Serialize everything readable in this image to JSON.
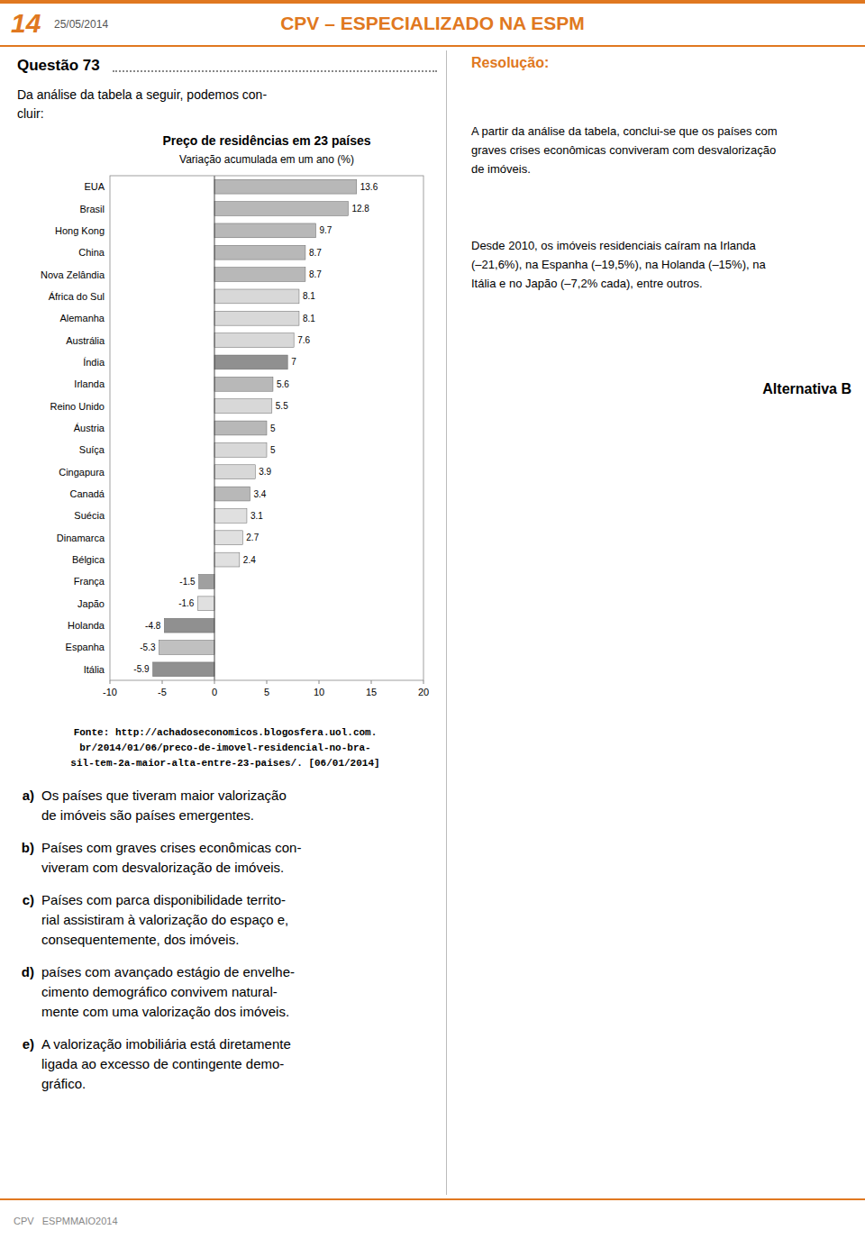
{
  "chart_data": {
    "type": "bar",
    "orientation": "horizontal",
    "title": "Preço de residências em 23 países",
    "subtitle": "Variação acumulada em um ano (%)",
    "categories": [
      "EUA",
      "Brasil",
      "Hong Kong",
      "China",
      "Nova Zelândia",
      "África do Sul",
      "Alemanha",
      "Austrália",
      "Índia",
      "Irlanda",
      "Reino Unido",
      "Áustria",
      "Suíça",
      "Cingapura",
      "Canadá",
      "Suécia",
      "Dinamarca",
      "Bélgica",
      "França",
      "Japão",
      "Holanda",
      "Espanha",
      "Itália"
    ],
    "values": [
      13.6,
      12.8,
      9.7,
      8.7,
      8.7,
      8.1,
      8.1,
      7.6,
      7.0,
      5.6,
      5.5,
      5.0,
      5.0,
      3.9,
      3.4,
      3.1,
      2.7,
      2.4,
      -1.5,
      -1.6,
      -4.8,
      -5.3,
      -5.9
    ],
    "colors": [
      "#b8b8b8",
      "#b8b8b8",
      "#b8b8b8",
      "#b8b8b8",
      "#b8b8b8",
      "#d8d8d8",
      "#d8d8d8",
      "#d8d8d8",
      "#909090",
      "#b8b8b8",
      "#d8d8d8",
      "#b8b8b8",
      "#d8d8d8",
      "#d8d8d8",
      "#b8b8b8",
      "#e0e0e0",
      "#e0e0e0",
      "#e0e0e0",
      "#a0a0a0",
      "#e0e0e0",
      "#909090",
      "#c0c0c0",
      "#909090"
    ],
    "xlim": [
      -10,
      20
    ],
    "xticks": [
      -10,
      -5,
      0,
      5,
      10,
      15,
      20
    ],
    "data_labels": true,
    "grid": false
  },
  "page": {
    "accent_color": "#E07820",
    "header_num": "14",
    "header_date": "25/05/2014",
    "header_title": "CPV – ESPECIALIZADO NA ESPM",
    "questao_title": "Questão 73",
    "questao_body": "Da análise da tabela a seguir, podemos con-\ncluir:",
    "fonte_lines": [
      "Fonte: http://achadoseconomicos.blogosfera.uol.com.",
      "br/2014/01/06/preco-de-imovel-residencial-no-bra-",
      "sil-tem-2a-maior-alta-entre-23-paises/. [06/01/2014]"
    ],
    "options": [
      {
        "letter": "a)",
        "text": "Os países que tiveram maior valorização\nde imóveis são países emergentes."
      },
      {
        "letter": "b)",
        "text": "Países com graves crises econômicas con-\nviveram com desvalorização de imóveis."
      },
      {
        "letter": "c)",
        "text": "Países com parca disponibilidade territo-\nrial assistiram à valorização do espaço e,\nconsequentemente, dos imóveis."
      },
      {
        "letter": "d)",
        "text": "países com avançado estágio de envelhe-\ncimento demográfico convivem natural-\nmente com uma valorização dos imóveis."
      },
      {
        "letter": "e)",
        "text": "A valorização imobiliária está diretamente\nligada ao excesso de contingente demo-\ngráfico."
      }
    ],
    "resolucao_title": "Resolução:",
    "resolucao_body1": "A partir da análise da tabela, conclui-se que os países com\ngraves crises econômicas conviveram com desvalorização\nde imóveis.",
    "resolucao_body2": "Desde 2010, os imóveis residenciais caíram na Irlanda\n(–21,6%), na Espanha (–19,5%), na Holanda (–15%), na\nItália e no Japão (–7,2% cada), entre outros.",
    "alternativa": "Alternativa B",
    "footer_text": "CPV   ESPMMAIO2014"
  }
}
